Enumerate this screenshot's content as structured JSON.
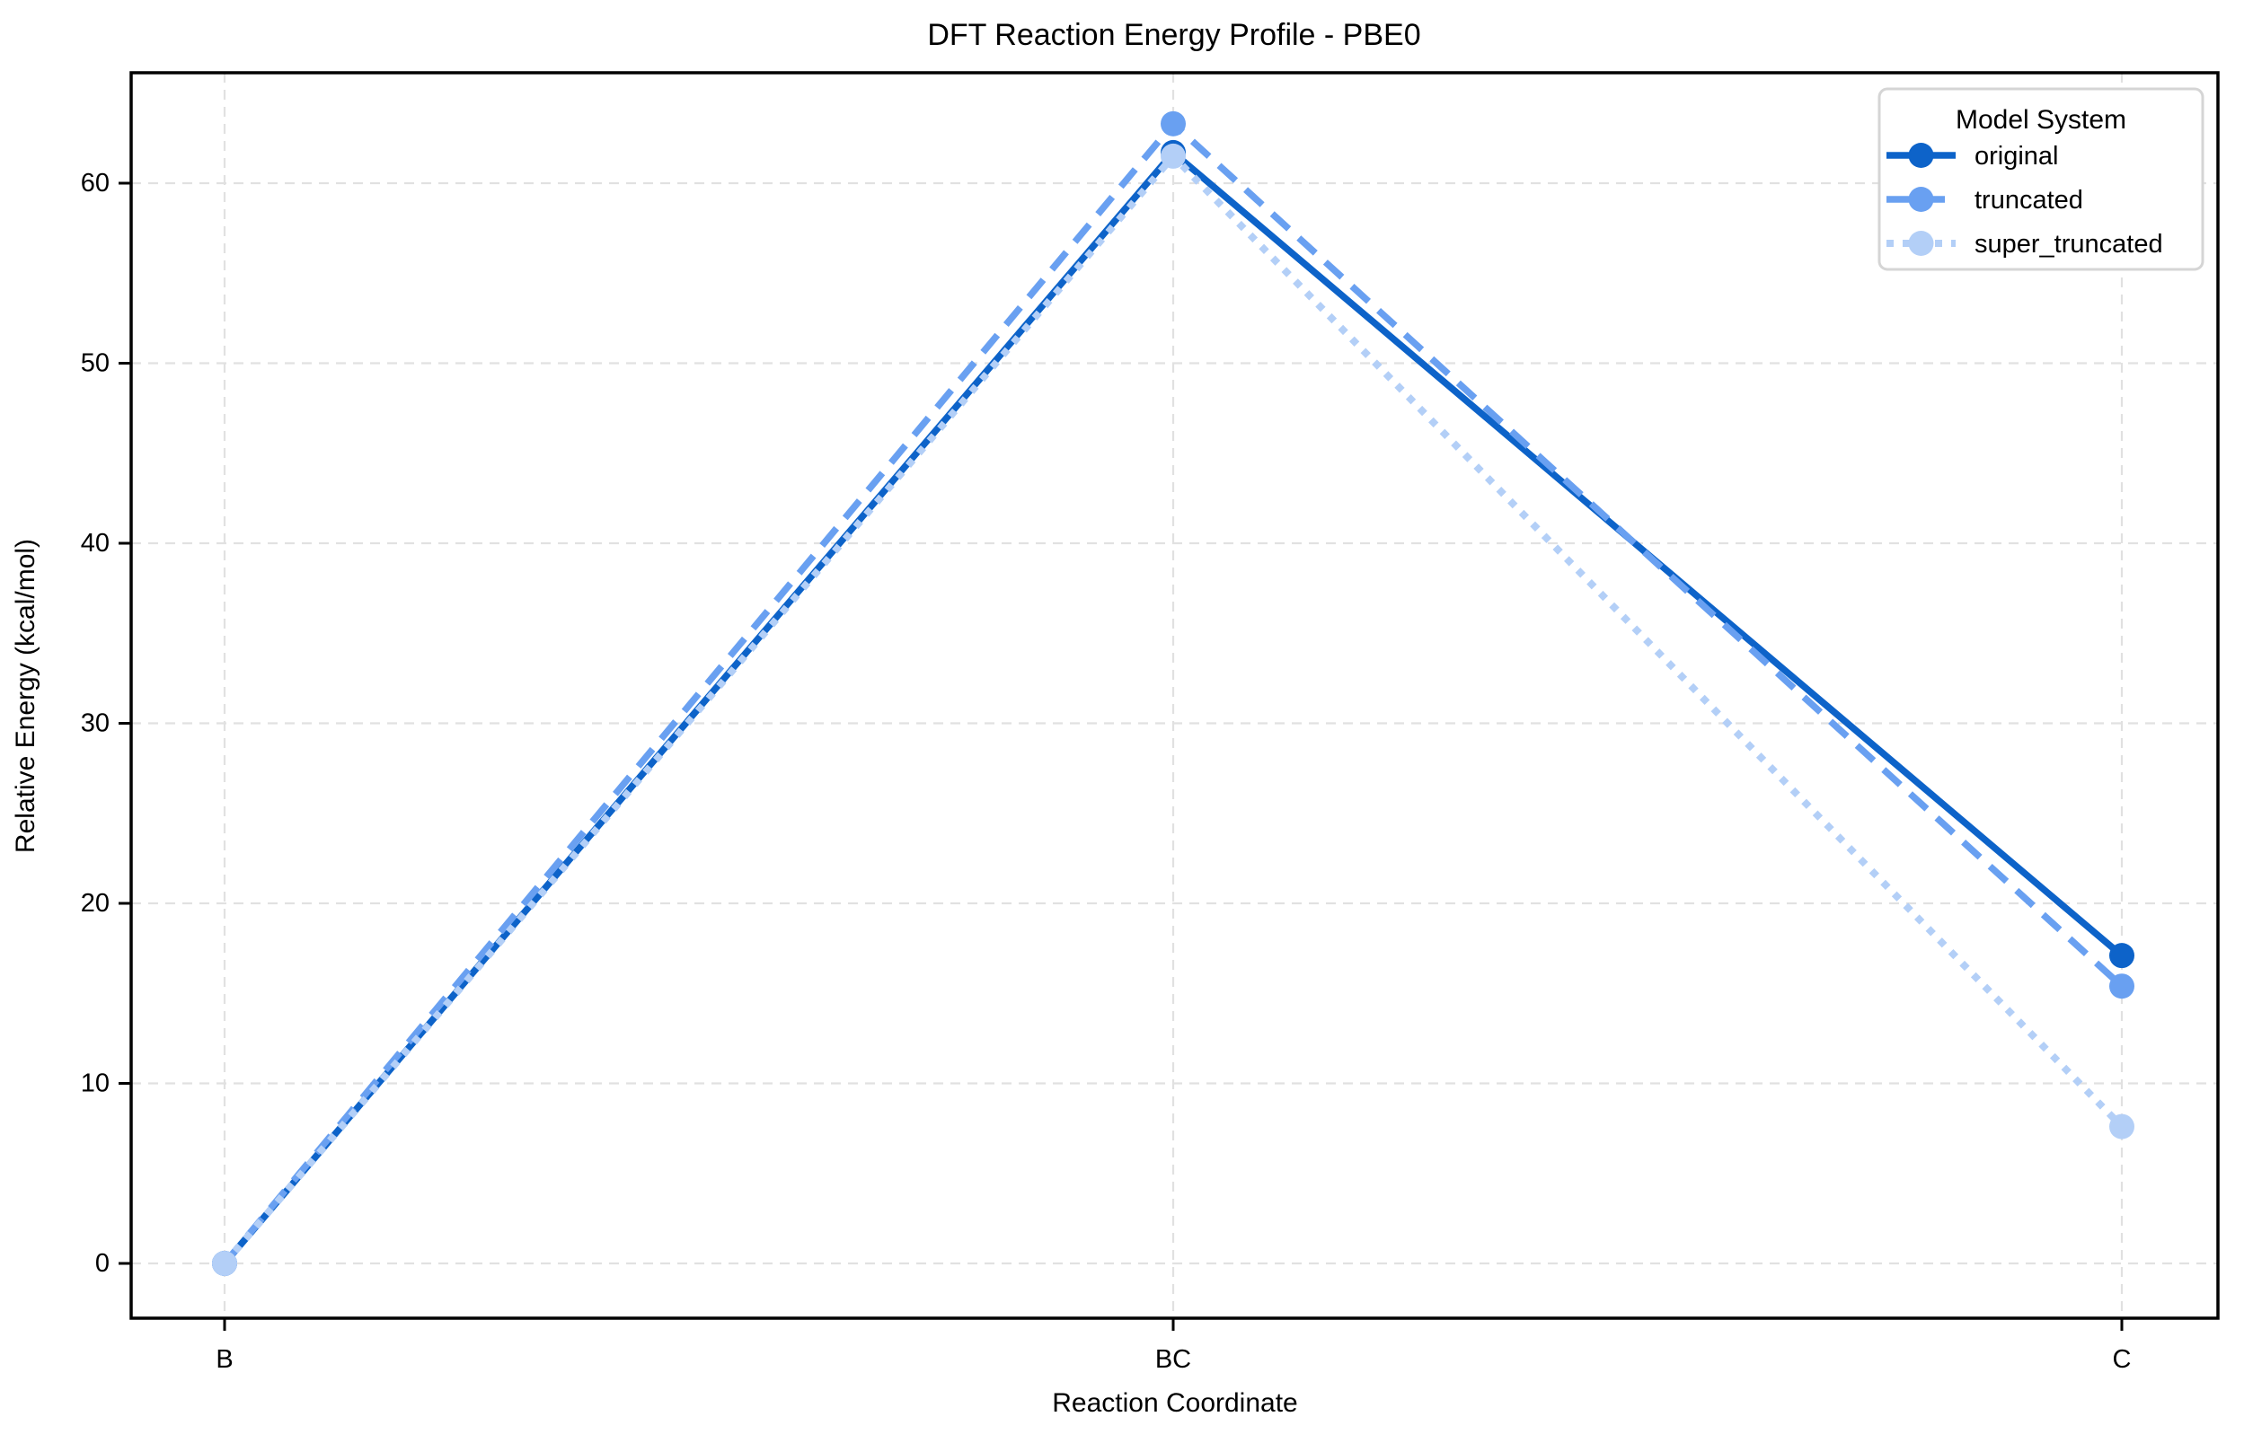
{
  "chart_data": {
    "type": "line",
    "title": "DFT Reaction Energy Profile - PBE0",
    "xlabel": "Reaction Coordinate",
    "ylabel": "Relative Energy (kcal/mol)",
    "categories": [
      "B",
      "BC",
      "C"
    ],
    "series": [
      {
        "name": "original",
        "values": [
          0.0,
          61.7,
          17.1
        ],
        "color": "#0d63c9",
        "line_style": "solid",
        "marker": "circle"
      },
      {
        "name": "truncated",
        "values": [
          0.0,
          63.3,
          15.4
        ],
        "color": "#69a0f1",
        "line_style": "dashed",
        "marker": "circle"
      },
      {
        "name": "super_truncated",
        "values": [
          0.0,
          61.5,
          7.6
        ],
        "color": "#b3cff7",
        "line_style": "dotted",
        "marker": "circle"
      }
    ],
    "legend": {
      "title": "Model System",
      "position": "upper right",
      "entries": [
        "original",
        "truncated",
        "super_truncated"
      ]
    },
    "yticks": [
      0,
      10,
      20,
      30,
      40,
      50,
      60
    ],
    "ylim": [
      -3.0,
      66.1
    ],
    "grid": true,
    "grid_style": "dashed",
    "colors": {
      "grid": "#e1e1e1",
      "spine": "#000000",
      "text": "#000000",
      "background": "#ffffff"
    }
  }
}
